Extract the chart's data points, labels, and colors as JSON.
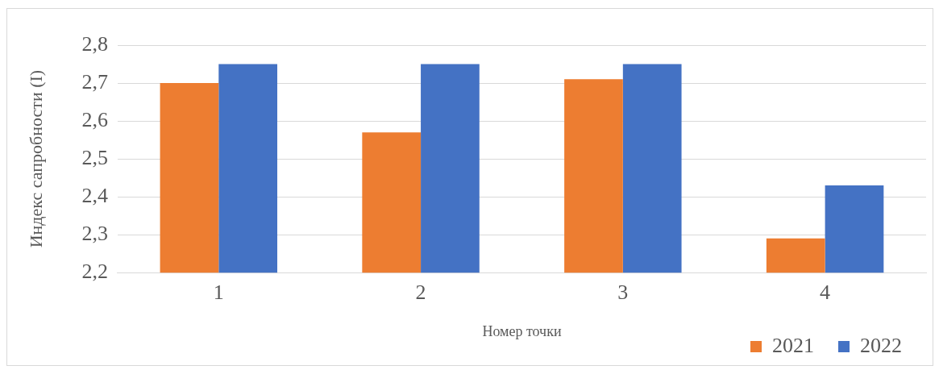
{
  "chart_data": {
    "type": "bar",
    "xlabel": "Номер точки",
    "ylabel": "Индекс сапробности (I)",
    "categories": [
      "1",
      "2",
      "3",
      "4"
    ],
    "series": [
      {
        "name": "2021",
        "color": "#ed7d31",
        "values": [
          2.7,
          2.57,
          2.71,
          2.29
        ]
      },
      {
        "name": "2022",
        "color": "#4472c4",
        "values": [
          2.75,
          2.75,
          2.75,
          2.43
        ]
      }
    ],
    "ylim": [
      2.2,
      2.8
    ],
    "yticks": [
      {
        "value": 2.2,
        "label": "2,2"
      },
      {
        "value": 2.3,
        "label": "2,3"
      },
      {
        "value": 2.4,
        "label": "2,4"
      },
      {
        "value": 2.5,
        "label": "2,5"
      },
      {
        "value": 2.6,
        "label": "2,6"
      },
      {
        "value": 2.7,
        "label": "2,7"
      },
      {
        "value": 2.8,
        "label": "2,8"
      }
    ],
    "grid": "y",
    "legend": "bottom right"
  }
}
